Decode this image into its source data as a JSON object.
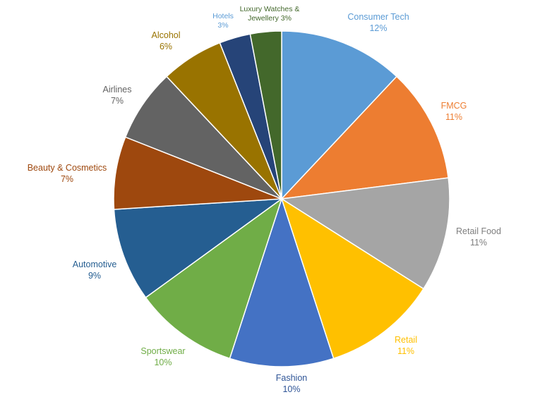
{
  "chart_data": {
    "type": "pie",
    "title": "",
    "legend": "none",
    "slices": [
      {
        "label": "Consumer Tech",
        "pct_label": "12%",
        "value": 12,
        "color": "#5b9bd5",
        "text_color": "#5b9bd5"
      },
      {
        "label": "FMCG",
        "pct_label": "11%",
        "value": 11,
        "color": "#ed7d31",
        "text_color": "#ed7d31"
      },
      {
        "label": "Retail Food",
        "pct_label": "11%",
        "value": 11,
        "color": "#a5a5a5",
        "text_color": "#7f7f7f"
      },
      {
        "label": "Retail",
        "pct_label": "11%",
        "value": 11,
        "color": "#ffc000",
        "text_color": "#ffc000"
      },
      {
        "label": "Fashion",
        "pct_label": "10%",
        "value": 10,
        "color": "#4472c4",
        "text_color": "#2f5597"
      },
      {
        "label": "Sportswear",
        "pct_label": "10%",
        "value": 10,
        "color": "#70ad47",
        "text_color": "#70ad47"
      },
      {
        "label": "Automotive",
        "pct_label": "9%",
        "value": 9,
        "color": "#255e91",
        "text_color": "#255e91"
      },
      {
        "label": "Beauty & Cosmetics",
        "pct_label": "7%",
        "value": 7,
        "color": "#9e480e",
        "text_color": "#9e480e"
      },
      {
        "label": "Airlines",
        "pct_label": "7%",
        "value": 7,
        "color": "#636363",
        "text_color": "#636363"
      },
      {
        "label": "Alcohol",
        "pct_label": "6%",
        "value": 6,
        "color": "#997300",
        "text_color": "#997300"
      },
      {
        "label": "Hotels",
        "pct_label": "3%",
        "value": 3,
        "color": "#264478",
        "text_color": "#5b9bd5"
      },
      {
        "label": "Luxury Watches & Jewellery",
        "pct_label": "3%",
        "value": 3,
        "color": "#43682b",
        "text_color": "#43682b"
      }
    ]
  }
}
